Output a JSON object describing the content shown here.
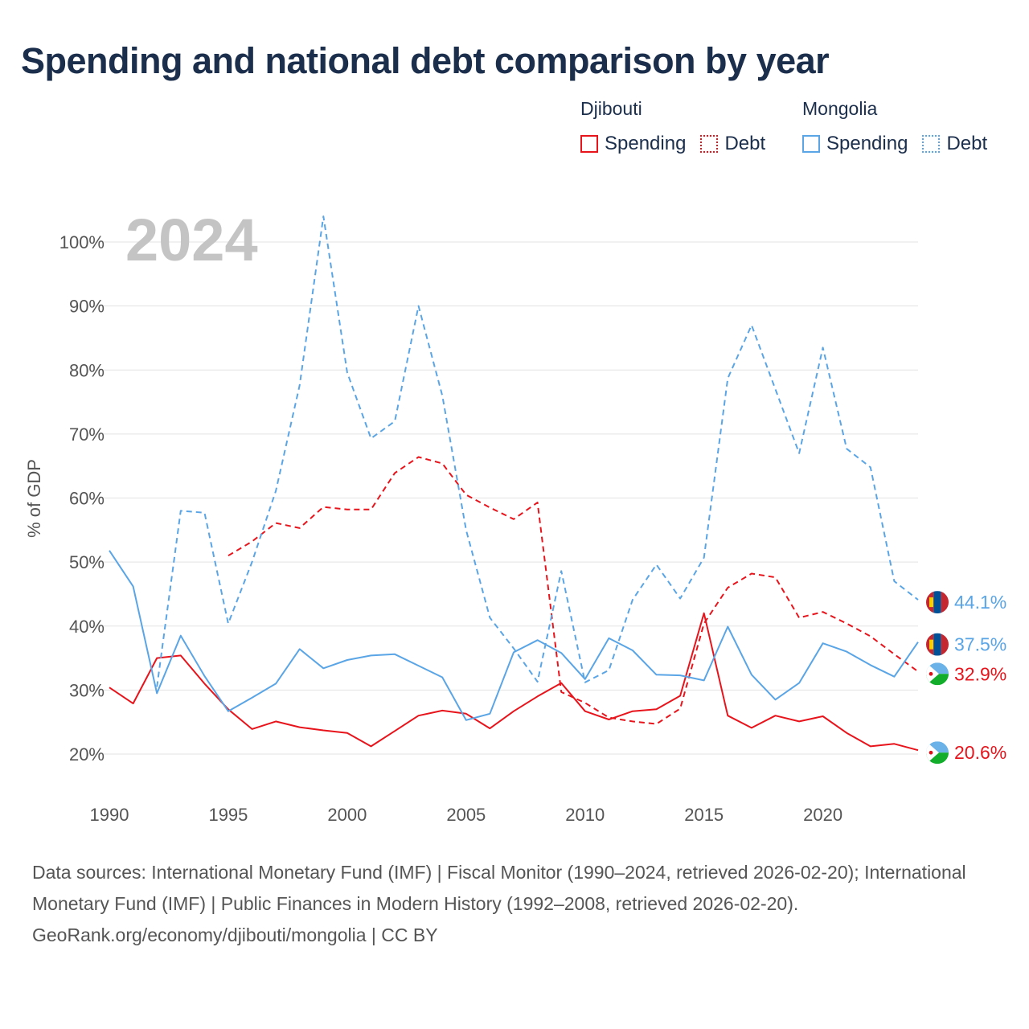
{
  "chart_data": {
    "type": "line",
    "title": "Spending and national debt comparison by year",
    "ylabel": "% of GDP",
    "xlabel": "",
    "xlim": [
      1990,
      2024
    ],
    "ylim": [
      15,
      105
    ],
    "yticks": [
      20,
      30,
      40,
      50,
      60,
      70,
      80,
      90,
      100
    ],
    "ytick_labels": [
      "20%",
      "30%",
      "40%",
      "50%",
      "60%",
      "70%",
      "80%",
      "90%",
      "100%"
    ],
    "xticks": [
      1990,
      1995,
      2000,
      2005,
      2010,
      2015,
      2020
    ],
    "xtick_labels": [
      "1990",
      "1995",
      "2000",
      "2005",
      "2010",
      "2015",
      "2020"
    ],
    "year_label": "2024",
    "legend": [
      {
        "country": "Djibouti",
        "items": [
          "Spending",
          "Debt"
        ],
        "color": "#e8141c"
      },
      {
        "country": "Mongolia",
        "items": [
          "Spending",
          "Debt"
        ],
        "color": "#5aa5e6"
      }
    ],
    "series": [
      {
        "name": "Djibouti Spending",
        "country": "Djibouti",
        "metric": "Spending",
        "style": "solid",
        "color": "#e8141c",
        "x": [
          1990,
          1991,
          1992,
          1993,
          1994,
          1995,
          1996,
          1997,
          1998,
          1999,
          2000,
          2001,
          2002,
          2003,
          2004,
          2005,
          2006,
          2007,
          2008,
          2009,
          2010,
          2011,
          2012,
          2013,
          2014,
          2015,
          2016,
          2017,
          2018,
          2019,
          2020,
          2021,
          2022,
          2023,
          2024
        ],
        "values": [
          30.4,
          27.9,
          35.0,
          35.4,
          31.0,
          27.0,
          23.9,
          25.1,
          24.2,
          23.7,
          23.3,
          21.2,
          23.6,
          26.0,
          26.8,
          26.3,
          24.0,
          26.7,
          29.0,
          31.1,
          26.7,
          25.4,
          26.7,
          27.0,
          29.1,
          42.0,
          26.0,
          24.1,
          26.0,
          25.1,
          25.9,
          23.3,
          21.2,
          21.6,
          20.6
        ],
        "end_label": "20.6%"
      },
      {
        "name": "Djibouti Debt",
        "country": "Djibouti",
        "metric": "Debt",
        "style": "dashed",
        "color": "#e8141c",
        "x": [
          1995,
          1996,
          1997,
          1998,
          1999,
          2000,
          2001,
          2002,
          2003,
          2004,
          2005,
          2006,
          2007,
          2008,
          2009,
          2010,
          2011,
          2012,
          2013,
          2014,
          2015,
          2016,
          2017,
          2018,
          2019,
          2020,
          2021,
          2022,
          2023,
          2024
        ],
        "values": [
          51.0,
          53.2,
          56.1,
          55.3,
          58.6,
          58.2,
          58.2,
          63.9,
          66.4,
          65.4,
          60.5,
          58.5,
          56.7,
          59.3,
          29.7,
          28.0,
          25.7,
          25.1,
          24.7,
          27.1,
          40.4,
          46.0,
          48.2,
          47.6,
          41.3,
          42.2,
          40.4,
          38.4,
          35.6,
          32.9
        ],
        "end_label": "32.9%"
      },
      {
        "name": "Mongolia Spending",
        "country": "Mongolia",
        "metric": "Spending",
        "style": "solid",
        "color": "#5aa5e6",
        "x": [
          1990,
          1991,
          1992,
          1993,
          1994,
          1995,
          1996,
          1997,
          1998,
          1999,
          2000,
          2001,
          2002,
          2003,
          2004,
          2005,
          2006,
          2007,
          2008,
          2009,
          2010,
          2011,
          2012,
          2013,
          2014,
          2015,
          2016,
          2017,
          2018,
          2019,
          2020,
          2021,
          2022,
          2023,
          2024
        ],
        "values": [
          51.8,
          46.2,
          29.5,
          38.5,
          32.2,
          26.7,
          28.8,
          31.0,
          36.4,
          33.4,
          34.7,
          35.4,
          35.6,
          33.8,
          32.0,
          25.3,
          26.3,
          35.9,
          37.8,
          35.8,
          31.7,
          38.1,
          36.2,
          32.4,
          32.3,
          31.5,
          39.9,
          32.4,
          28.5,
          31.1,
          37.3,
          36.0,
          33.9,
          32.1,
          37.5
        ],
        "end_label": "37.5%"
      },
      {
        "name": "Mongolia Debt",
        "country": "Mongolia",
        "metric": "Debt",
        "style": "dashed",
        "color": "#5aa5e6",
        "x": [
          1992,
          1993,
          1994,
          1995,
          1996,
          1997,
          1998,
          1999,
          2000,
          2001,
          2002,
          2003,
          2004,
          2005,
          2006,
          2007,
          2008,
          2009,
          2010,
          2011,
          2012,
          2013,
          2014,
          2015,
          2016,
          2017,
          2018,
          2019,
          2020,
          2021,
          2022,
          2023,
          2024
        ],
        "values": [
          30.5,
          58.0,
          57.7,
          40.4,
          50.0,
          61.1,
          77.6,
          104.0,
          79.6,
          69.3,
          72.0,
          90.0,
          76.0,
          55.0,
          41.3,
          36.5,
          31.3,
          48.6,
          31.2,
          33.1,
          44.1,
          49.6,
          44.3,
          50.7,
          78.7,
          87.0,
          77.0,
          67.0,
          83.5,
          67.7,
          64.8,
          47.0,
          44.1
        ],
        "end_label": "44.1%"
      }
    ]
  },
  "footer": {
    "sources": "Data sources: International Monetary Fund (IMF) | Fiscal Monitor (1990–2024, retrieved 2026-02-20); International Monetary Fund (IMF) | Public Finances in Modern History (1992–2008, retrieved 2026-02-20).",
    "credit": "GeoRank.org/economy/djibouti/mongolia | CC BY"
  }
}
